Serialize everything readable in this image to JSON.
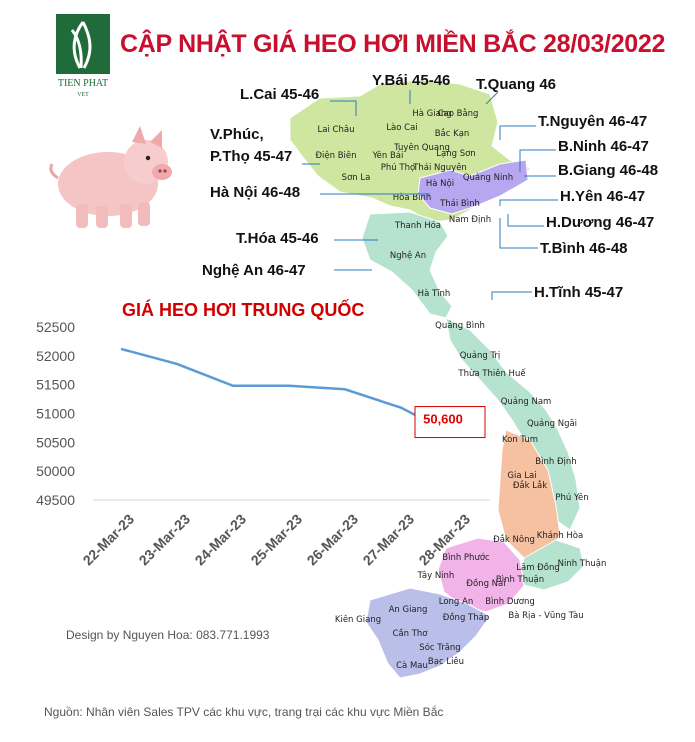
{
  "header": {
    "title": "CẬP NHẬT GIÁ HEO HƠI MIỀN BẮC 28/03/2022",
    "logo_text": "TIEN PHAT",
    "logo_subtext": "VET"
  },
  "province_prices": [
    {
      "id": "lao-cai",
      "text": "L.Cai 45-46"
    },
    {
      "id": "yen-bai",
      "text": "Y.Bái 45-46"
    },
    {
      "id": "tuyen-quang",
      "text": "T.Quang 46"
    },
    {
      "id": "thai-nguyen",
      "text": "T.Nguyên 46-47"
    },
    {
      "id": "vinh-phuc",
      "text": "V.Phúc,"
    },
    {
      "id": "phu-tho",
      "text": "P.Thọ 45-47"
    },
    {
      "id": "bac-ninh",
      "text": "B.Ninh 46-47"
    },
    {
      "id": "bac-giang",
      "text": "B.Giang 46-48"
    },
    {
      "id": "ha-noi",
      "text": "Hà Nội 46-48"
    },
    {
      "id": "hung-yen",
      "text": "H.Yên 46-47"
    },
    {
      "id": "hai-duong",
      "text": "H.Dương 46-47"
    },
    {
      "id": "thanh-hoa",
      "text": "T.Hóa 45-46"
    },
    {
      "id": "thai-binh",
      "text": "T.Bình 46-48"
    },
    {
      "id": "nghe-an",
      "text": "Nghệ An 46-47"
    },
    {
      "id": "ha-tinh",
      "text": "H.Tĩnh 45-47"
    }
  ],
  "map_names": [
    "Hà Giang",
    "Cao Bằng",
    "Lào Cai",
    "Lai Châu",
    "Bắc Kạn",
    "Yên Bái",
    "Điện Biên",
    "Tuyên Quang",
    "Lạng Sơn",
    "Phú Thọ",
    "Thái Nguyên",
    "Sơn La",
    "Hà Nội",
    "Quảng Ninh",
    "Hòa Bình",
    "Thái Bình",
    "Nam Định",
    "Thanh Hóa",
    "Nghệ An",
    "Hà Tĩnh",
    "Quảng Bình",
    "Quảng Trị",
    "Thừa Thiên Huế",
    "Quảng Nam",
    "Kon Tum",
    "Quảng Ngãi",
    "Bình Định",
    "Gia Lai",
    "Phú Yên",
    "Đắk Lắk",
    "Khánh Hòa",
    "Đắk Nông",
    "Ninh Thuận",
    "Lâm Đồng",
    "Bình Phước",
    "Tây Ninh",
    "Đồng Nai",
    "Bình Thuận",
    "Long An",
    "Bình Dương",
    "An Giang",
    "Kiên Giang",
    "Đồng Tháp",
    "Bà Rịa - Vũng Tàu",
    "Cần Thơ",
    "Sóc Trăng",
    "Cà Mau",
    "Bạc Liêu"
  ],
  "chart_data": {
    "type": "line",
    "title": "GIÁ HEO HƠI TRUNG QUỐC",
    "categories": [
      "22-Mar-23",
      "23-Mar-23",
      "24-Mar-23",
      "25-Mar-23",
      "26-Mar-23",
      "27-Mar-23",
      "28-Mar-23"
    ],
    "series": [
      {
        "values": [
          52120,
          51860,
          51480,
          51480,
          51420,
          51100,
          50600
        ]
      }
    ],
    "ylim": [
      49500,
      52500
    ],
    "yticks": [
      49500,
      50000,
      50500,
      51000,
      51500,
      52000,
      52500
    ],
    "data_label": "50,600",
    "grid": false,
    "line_color": "#5b9bd5",
    "label_color": "#e00000"
  },
  "footer": {
    "credit": "Design by Nguyen Hoa: 083.771.1993",
    "source": "Nguồn: Nhân viên Sales TPV các khu vực, trang trại các khu vực Miền Bắc"
  },
  "colors": {
    "title": "#c8102e",
    "map_north": "#cfe6a0",
    "map_central": "#b6e2d0",
    "map_highlands": "#f5c1a0",
    "map_south_east": "#f1b3e8",
    "map_mekong": "#b9bfe8"
  }
}
